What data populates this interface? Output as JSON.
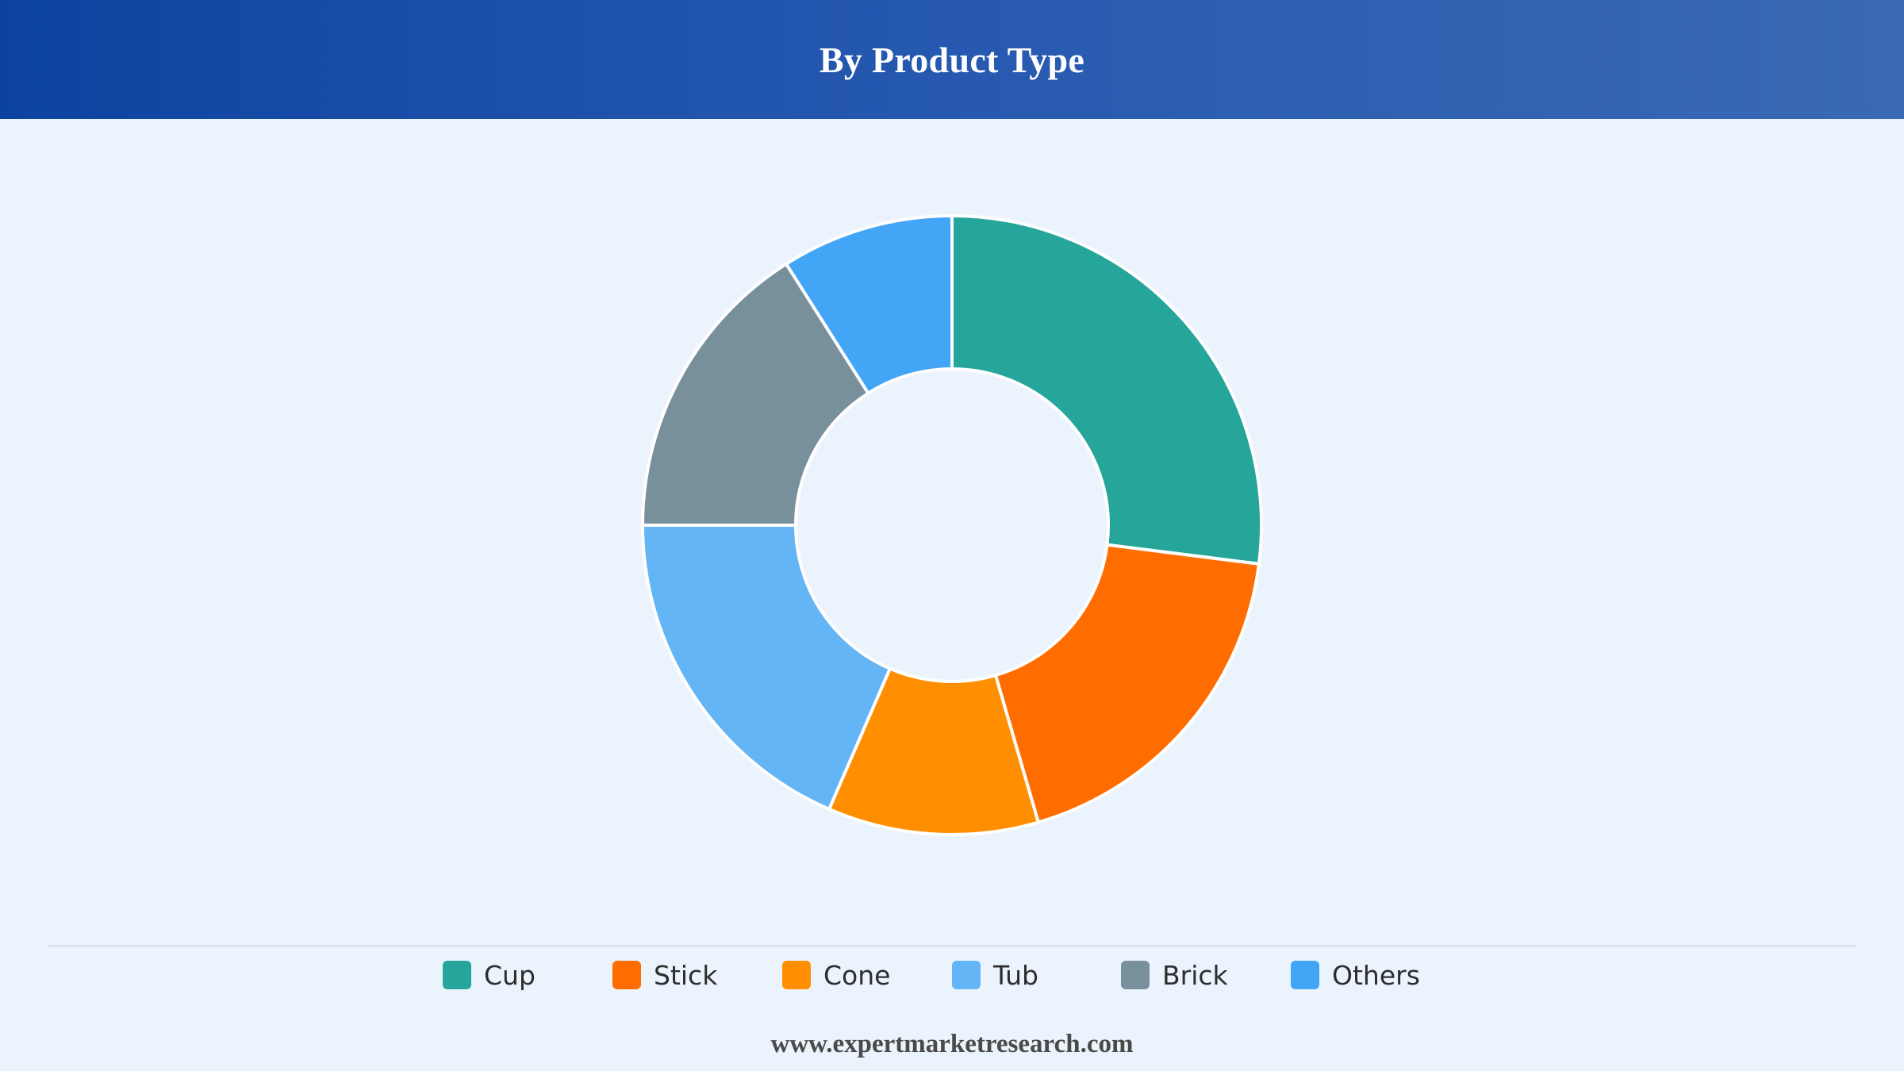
{
  "header": {
    "title": "By Product Type"
  },
  "chart_data": {
    "type": "pie",
    "donut": true,
    "categories": [
      "Cup",
      "Stick",
      "Cone",
      "Tub",
      "Brick",
      "Others"
    ],
    "values": [
      27,
      18.5,
      11,
      18.5,
      16,
      9
    ],
    "colors": [
      "#26a69a",
      "#ff6d00",
      "#ff8f00",
      "#64b5f6",
      "#78909c",
      "#42a5f5"
    ],
    "legend_position": "bottom"
  },
  "legend": {
    "items": [
      {
        "label": "Cup",
        "color": "#26a69a"
      },
      {
        "label": "Stick",
        "color": "#ff6d00"
      },
      {
        "label": "Cone",
        "color": "#ff8f00"
      },
      {
        "label": "Tub",
        "color": "#64b5f6"
      },
      {
        "label": "Brick",
        "color": "#78909c"
      },
      {
        "label": "Others",
        "color": "#42a5f5"
      }
    ]
  },
  "footer": {
    "source": "www.expertmarketresearch.com"
  }
}
